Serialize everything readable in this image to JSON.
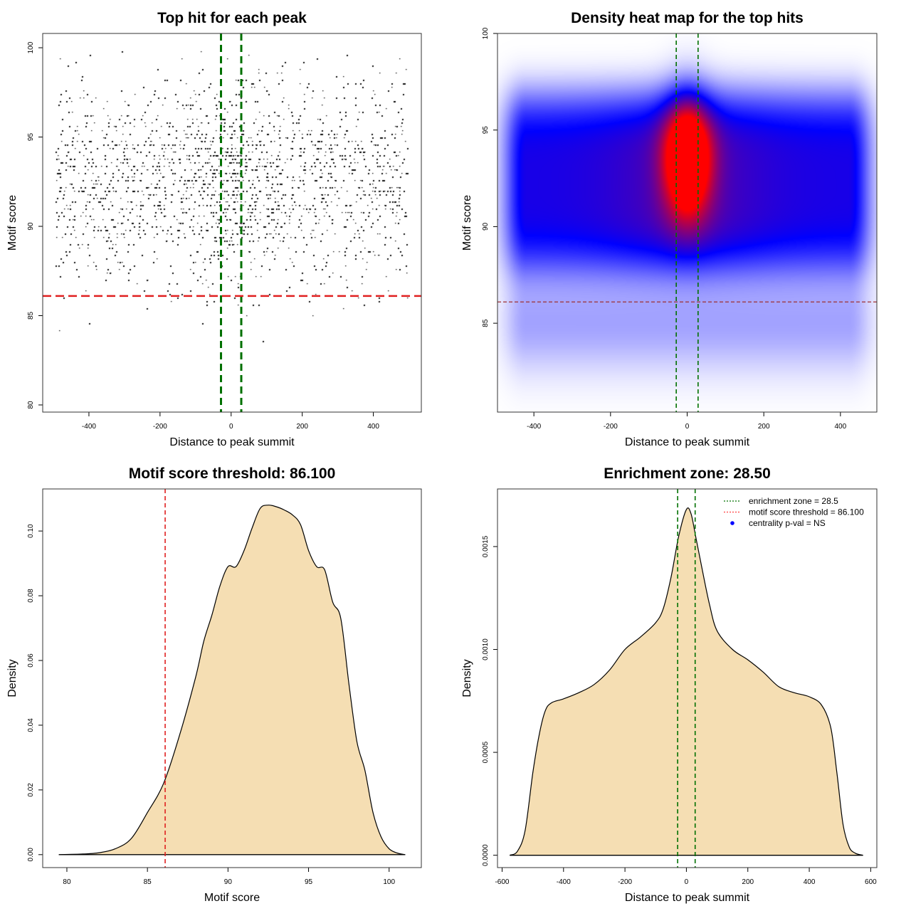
{
  "chart_data": [
    {
      "type": "scatter",
      "title": "Top hit for each peak",
      "xlabel": "Distance to peak summit",
      "ylabel": "Motif score",
      "xlim": [
        -530,
        535
      ],
      "ylim": [
        79.6,
        100.8
      ],
      "xticks": [
        -400,
        -200,
        0,
        200,
        400
      ],
      "yticks": [
        80,
        85,
        90,
        95,
        100
      ],
      "point_color": "#000000",
      "vlines": {
        "values": [
          -28.5,
          28.5
        ],
        "color": "#007000",
        "style": "dashed"
      },
      "hline": {
        "value": 86.1,
        "color": "#e02020",
        "style": "dashed"
      }
    },
    {
      "type": "heatmap",
      "title": "Density heat map for the top hits",
      "xlabel": "Distance to peak summit",
      "ylabel": "Motif score",
      "xlim": [
        -495,
        495
      ],
      "ylim": [
        80.4,
        100
      ],
      "xticks": [
        -400,
        -200,
        0,
        200,
        400
      ],
      "yticks": [
        85,
        90,
        95,
        100
      ],
      "colors": [
        "#ffffff",
        "#0000ff",
        "#ff0000"
      ],
      "vlines": {
        "values": [
          -28.5,
          28.5
        ],
        "color": "#007000",
        "style": "dashed"
      },
      "hline": {
        "value": 86.1,
        "color": "#a03030",
        "style": "dashed"
      }
    },
    {
      "type": "area",
      "title": "Motif score threshold: 86.100",
      "xlabel": "Motif score",
      "ylabel": "Density",
      "xlim": [
        78.5,
        102
      ],
      "ylim": [
        -0.004,
        0.113
      ],
      "xticks": [
        80,
        85,
        90,
        95,
        100
      ],
      "yticks": [
        0.0,
        0.02,
        0.04,
        0.06,
        0.08,
        0.1
      ],
      "ytick_labels": [
        "0.00",
        "0.02",
        "0.04",
        "0.06",
        "0.08",
        "0.10"
      ],
      "fill": "#f5deb3",
      "vline": {
        "value": 86.1,
        "color": "#e02020",
        "style": "dashed"
      },
      "x": [
        79.5,
        81,
        82,
        83,
        84,
        85,
        86,
        87,
        88,
        88.5,
        89,
        89.5,
        90,
        90.5,
        91,
        91.5,
        92,
        92.5,
        93,
        93.5,
        94,
        94.5,
        95,
        95.5,
        96,
        96.5,
        97,
        97.5,
        98,
        98.5,
        99,
        99.5,
        100,
        100.5,
        101
      ],
      "y": [
        0,
        0.0002,
        0.0006,
        0.0018,
        0.005,
        0.013,
        0.022,
        0.037,
        0.055,
        0.066,
        0.074,
        0.083,
        0.089,
        0.089,
        0.094,
        0.101,
        0.107,
        0.108,
        0.1075,
        0.1065,
        0.105,
        0.102,
        0.094,
        0.089,
        0.088,
        0.078,
        0.073,
        0.053,
        0.035,
        0.026,
        0.013,
        0.0055,
        0.0018,
        0.0005,
        0
      ]
    },
    {
      "type": "area",
      "title": "Enrichment zone: 28.50",
      "xlabel": "Distance to peak summit",
      "ylabel": "Density",
      "xlim": [
        -615,
        620
      ],
      "ylim": [
        -6e-05,
        0.00178
      ],
      "xticks": [
        -600,
        -400,
        -200,
        0,
        200,
        400,
        600
      ],
      "yticks": [
        0,
        0.0005,
        0.001,
        0.0015
      ],
      "ytick_labels": [
        "0.0000",
        "0.0005",
        "0.0010",
        "0.0015"
      ],
      "fill": "#f5deb3",
      "vlines": {
        "values": [
          -28.5,
          28.5
        ],
        "color": "#007000",
        "style": "dashed"
      },
      "x": [
        -575,
        -550,
        -525,
        -500,
        -480,
        -460,
        -440,
        -400,
        -350,
        -300,
        -250,
        -200,
        -150,
        -100,
        -75,
        -50,
        -25,
        0,
        15,
        30,
        50,
        75,
        100,
        150,
        200,
        250,
        300,
        350,
        400,
        440,
        470,
        490,
        510,
        530,
        550,
        575
      ],
      "y": [
        0,
        2e-05,
        0.00012,
        0.0004,
        0.00058,
        0.0007,
        0.00074,
        0.00076,
        0.00079,
        0.00083,
        0.0009,
        0.001,
        0.00106,
        0.00113,
        0.0012,
        0.00135,
        0.00155,
        0.00168,
        0.00166,
        0.00155,
        0.0014,
        0.00122,
        0.00109,
        0.001,
        0.00095,
        0.00089,
        0.00082,
        0.00079,
        0.00077,
        0.00073,
        0.00062,
        0.0004,
        0.00015,
        4e-05,
        1e-05,
        0
      ],
      "legend": {
        "placement": "top-right",
        "entries": [
          {
            "label": "enrichment zone = 28.5",
            "color": "#007000",
            "symbol": "dotted-line"
          },
          {
            "label": "motif score threshold = 86.100",
            "color": "#ff4040",
            "symbol": "dotted-line"
          },
          {
            "label": "centrality p-val = NS",
            "color": "#0000ff",
            "symbol": "dot"
          }
        ]
      }
    }
  ]
}
